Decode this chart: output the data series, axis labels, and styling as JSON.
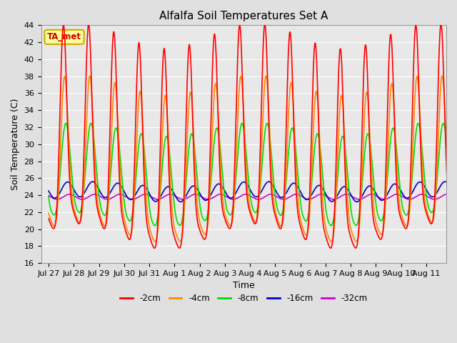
{
  "title": "Alfalfa Soil Temperatures Set A",
  "xlabel": "Time",
  "ylabel": "Soil Temperature (C)",
  "ylim": [
    16,
    44
  ],
  "yticks": [
    16,
    18,
    20,
    22,
    24,
    26,
    28,
    30,
    32,
    34,
    36,
    38,
    40,
    42,
    44
  ],
  "background_color": "#e0e0e0",
  "plot_bg_color": "#e8e8e8",
  "grid_color": "#ffffff",
  "annotation_text": "TA_met",
  "annotation_bg": "#ffff99",
  "annotation_border": "#ccaa00",
  "annotation_text_color": "#cc0000",
  "series": {
    "labels": [
      "-2cm",
      "-4cm",
      "-8cm",
      "-16cm",
      "-32cm"
    ],
    "colors": [
      "#ff0000",
      "#ff8800",
      "#00dd00",
      "#0000cc",
      "#cc00cc"
    ],
    "linewidths": [
      1.2,
      1.2,
      1.2,
      1.2,
      1.2
    ]
  },
  "tick_labels": [
    "Jul 27",
    "Jul 28",
    "Jul 29",
    "Jul 30",
    "Jul 31",
    "Aug 1",
    "Aug 2",
    "Aug 3",
    "Aug 4",
    "Aug 5",
    "Aug 6",
    "Aug 7",
    "Aug 8",
    "Aug 9",
    "Aug 10",
    "Aug 11"
  ]
}
